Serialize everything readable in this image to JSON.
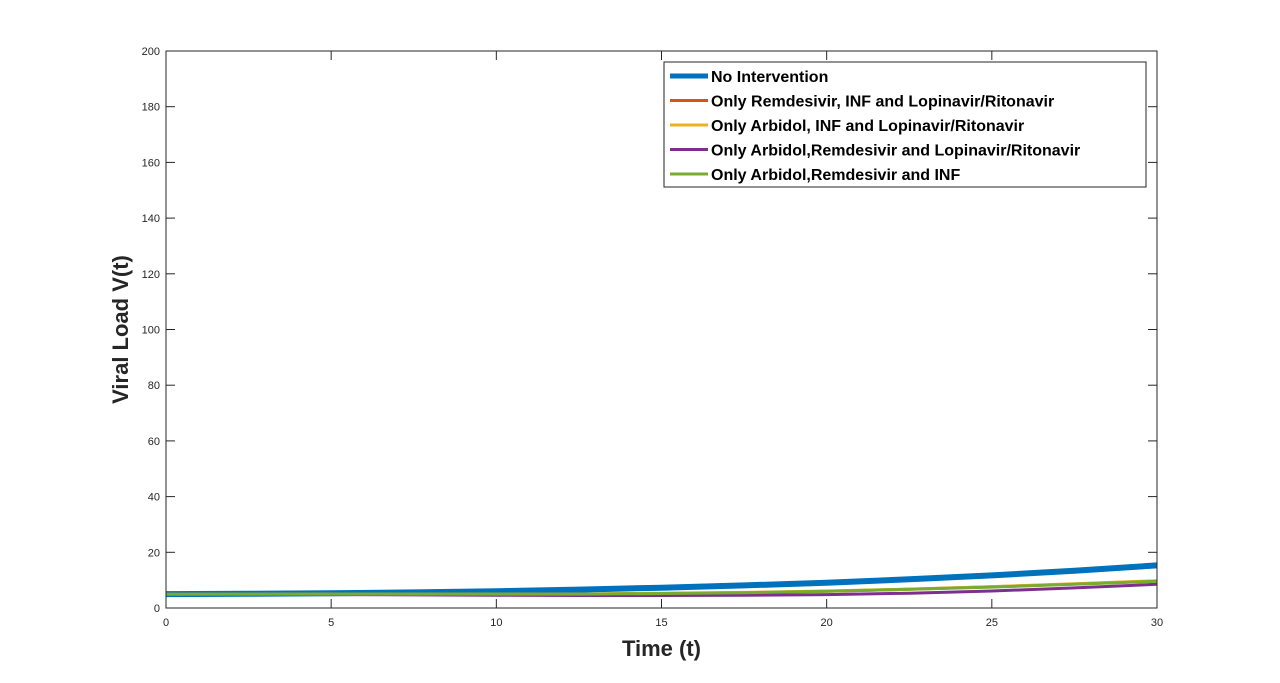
{
  "chart_data": {
    "type": "line",
    "title": "",
    "xlabel": "Time (t)",
    "ylabel": "Viral Load V(t)",
    "xlim": [
      0,
      30
    ],
    "ylim": [
      0,
      200
    ],
    "xticks": [
      "0",
      "5",
      "10",
      "15",
      "20",
      "25",
      "30"
    ],
    "yticks": [
      "0",
      "20",
      "40",
      "60",
      "80",
      "100",
      "120",
      "140",
      "160",
      "180",
      "200"
    ],
    "grid": false,
    "legend_position": "top-right",
    "x": [
      0,
      2.5,
      5,
      7.5,
      10,
      12.5,
      15,
      17.5,
      20,
      22.5,
      25,
      27.5,
      30
    ],
    "series": [
      {
        "name": "No Intervention",
        "color": "#0072BD",
        "values": [
          5.0,
          5.1,
          5.3,
          5.6,
          6.0,
          6.6,
          7.3,
          8.1,
          9.1,
          10.3,
          11.7,
          13.4,
          15.3
        ]
      },
      {
        "name": "Only Remdesivir, INF and Lopinavir/Ritonavir",
        "color": "#D95319",
        "values": [
          5.0,
          5.0,
          5.0,
          5.0,
          5.0,
          5.0,
          5.2,
          5.5,
          6.0,
          6.7,
          7.6,
          8.6,
          9.7
        ]
      },
      {
        "name": "Only Arbidol, INF and Lopinavir/Ritonavir",
        "color": "#EDB120",
        "values": [
          5.0,
          5.0,
          5.0,
          5.0,
          5.0,
          5.0,
          5.3,
          5.6,
          6.1,
          6.8,
          7.7,
          8.7,
          9.8
        ]
      },
      {
        "name": "Only Arbidol,Remdesivir and Lopinavir/Ritonavir",
        "color": "#7E2F8E",
        "values": [
          5.0,
          4.9,
          4.8,
          4.7,
          4.6,
          4.5,
          4.5,
          4.6,
          4.8,
          5.3,
          6.1,
          7.2,
          8.5
        ]
      },
      {
        "name": "Only Arbidol,Remdesivir and INF",
        "color": "#77AC30",
        "values": [
          5.0,
          5.0,
          5.0,
          5.0,
          5.0,
          5.0,
          5.2,
          5.5,
          6.0,
          6.7,
          7.5,
          8.5,
          9.6
        ]
      }
    ]
  }
}
